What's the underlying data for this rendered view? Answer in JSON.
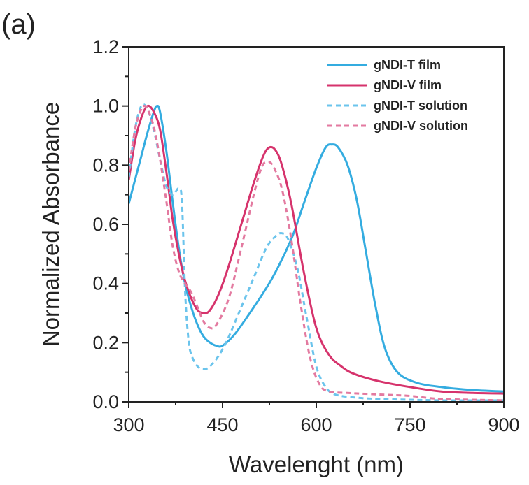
{
  "panel_label": "(a)",
  "chart_data": {
    "type": "line",
    "title": "",
    "xlabel": "Wavelenght (nm)",
    "ylabel": "Normalized Absorbance",
    "xlim": [
      300,
      900
    ],
    "ylim": [
      0.0,
      1.2
    ],
    "xticks": [
      300,
      450,
      600,
      750,
      900
    ],
    "yticks": [
      0.0,
      0.2,
      0.4,
      0.6,
      0.8,
      1.0,
      1.2
    ],
    "xtick_labels": [
      "300",
      "450",
      "600",
      "750",
      "900"
    ],
    "ytick_labels": [
      "0.0",
      "0.2",
      "0.4",
      "0.6",
      "0.8",
      "1.0",
      "1.2"
    ],
    "grid": false,
    "legend_position": "top-right",
    "series": [
      {
        "name": "gNDI-T film",
        "color": "#34ACE0",
        "dash": "solid",
        "points": [
          [
            300,
            0.67
          ],
          [
            310,
            0.75
          ],
          [
            320,
            0.83
          ],
          [
            330,
            0.91
          ],
          [
            340,
            0.98
          ],
          [
            345,
            1.0
          ],
          [
            350,
            0.98
          ],
          [
            360,
            0.85
          ],
          [
            370,
            0.68
          ],
          [
            380,
            0.52
          ],
          [
            390,
            0.4
          ],
          [
            400,
            0.32
          ],
          [
            410,
            0.26
          ],
          [
            420,
            0.22
          ],
          [
            430,
            0.2
          ],
          [
            440,
            0.19
          ],
          [
            450,
            0.19
          ],
          [
            470,
            0.23
          ],
          [
            500,
            0.32
          ],
          [
            530,
            0.42
          ],
          [
            560,
            0.55
          ],
          [
            580,
            0.67
          ],
          [
            600,
            0.79
          ],
          [
            615,
            0.86
          ],
          [
            625,
            0.87
          ],
          [
            635,
            0.86
          ],
          [
            650,
            0.8
          ],
          [
            665,
            0.68
          ],
          [
            680,
            0.5
          ],
          [
            695,
            0.32
          ],
          [
            710,
            0.18
          ],
          [
            730,
            0.1
          ],
          [
            760,
            0.065
          ],
          [
            800,
            0.05
          ],
          [
            850,
            0.04
          ],
          [
            900,
            0.035
          ]
        ]
      },
      {
        "name": "gNDI-V film",
        "color": "#D6336C",
        "dash": "solid",
        "points": [
          [
            300,
            0.75
          ],
          [
            310,
            0.88
          ],
          [
            320,
            0.96
          ],
          [
            330,
            1.0
          ],
          [
            340,
            0.98
          ],
          [
            350,
            0.92
          ],
          [
            360,
            0.78
          ],
          [
            370,
            0.62
          ],
          [
            380,
            0.5
          ],
          [
            390,
            0.41
          ],
          [
            400,
            0.35
          ],
          [
            410,
            0.31
          ],
          [
            420,
            0.3
          ],
          [
            430,
            0.31
          ],
          [
            445,
            0.37
          ],
          [
            460,
            0.46
          ],
          [
            480,
            0.6
          ],
          [
            500,
            0.74
          ],
          [
            515,
            0.83
          ],
          [
            525,
            0.86
          ],
          [
            535,
            0.85
          ],
          [
            545,
            0.8
          ],
          [
            560,
            0.67
          ],
          [
            580,
            0.44
          ],
          [
            600,
            0.25
          ],
          [
            620,
            0.16
          ],
          [
            640,
            0.12
          ],
          [
            660,
            0.095
          ],
          [
            700,
            0.07
          ],
          [
            750,
            0.05
          ],
          [
            800,
            0.035
          ],
          [
            850,
            0.03
          ],
          [
            900,
            0.028
          ]
        ]
      },
      {
        "name": "gNDI-T solution",
        "color": "#6BC4EC",
        "dash": "dashed",
        "points": [
          [
            300,
            0.76
          ],
          [
            310,
            0.92
          ],
          [
            320,
            1.0
          ],
          [
            330,
            0.99
          ],
          [
            340,
            0.92
          ],
          [
            350,
            0.82
          ],
          [
            360,
            0.73
          ],
          [
            370,
            0.7
          ],
          [
            375,
            0.71
          ],
          [
            380,
            0.72
          ],
          [
            385,
            0.68
          ],
          [
            390,
            0.38
          ],
          [
            395,
            0.22
          ],
          [
            400,
            0.16
          ],
          [
            410,
            0.12
          ],
          [
            420,
            0.11
          ],
          [
            430,
            0.12
          ],
          [
            445,
            0.16
          ],
          [
            460,
            0.22
          ],
          [
            480,
            0.32
          ],
          [
            500,
            0.42
          ],
          [
            520,
            0.52
          ],
          [
            535,
            0.56
          ],
          [
            545,
            0.57
          ],
          [
            555,
            0.55
          ],
          [
            570,
            0.45
          ],
          [
            585,
            0.28
          ],
          [
            600,
            0.12
          ],
          [
            615,
            0.05
          ],
          [
            630,
            0.025
          ],
          [
            660,
            0.015
          ],
          [
            700,
            0.01
          ],
          [
            800,
            0.005
          ],
          [
            900,
            0.005
          ]
        ]
      },
      {
        "name": "gNDI-V solution",
        "color": "#E37AA0",
        "dash": "dashed",
        "points": [
          [
            300,
            0.78
          ],
          [
            310,
            0.92
          ],
          [
            320,
            0.99
          ],
          [
            325,
            1.0
          ],
          [
            330,
            0.99
          ],
          [
            340,
            0.93
          ],
          [
            350,
            0.82
          ],
          [
            360,
            0.68
          ],
          [
            370,
            0.53
          ],
          [
            380,
            0.44
          ],
          [
            390,
            0.4
          ],
          [
            400,
            0.37
          ],
          [
            410,
            0.32
          ],
          [
            420,
            0.27
          ],
          [
            430,
            0.25
          ],
          [
            440,
            0.26
          ],
          [
            460,
            0.35
          ],
          [
            480,
            0.52
          ],
          [
            500,
            0.7
          ],
          [
            512,
            0.79
          ],
          [
            520,
            0.81
          ],
          [
            530,
            0.8
          ],
          [
            545,
            0.72
          ],
          [
            560,
            0.55
          ],
          [
            575,
            0.33
          ],
          [
            590,
            0.15
          ],
          [
            605,
            0.06
          ],
          [
            620,
            0.035
          ],
          [
            650,
            0.03
          ],
          [
            700,
            0.025
          ],
          [
            750,
            0.02
          ],
          [
            800,
            0.01
          ],
          [
            900,
            0.005
          ]
        ]
      }
    ]
  }
}
